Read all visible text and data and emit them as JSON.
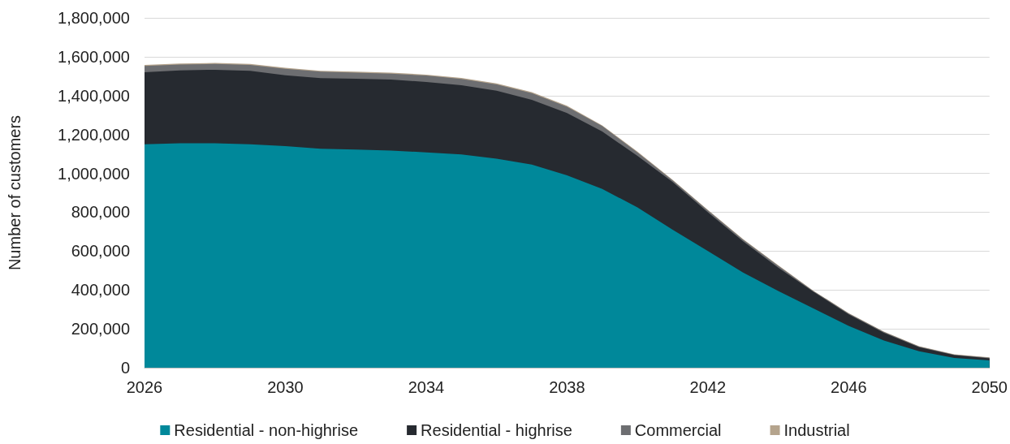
{
  "chart_data": {
    "type": "area",
    "stacked": true,
    "ylabel": "Number of customers",
    "x": [
      2026,
      2027,
      2028,
      2029,
      2030,
      2031,
      2032,
      2033,
      2034,
      2035,
      2036,
      2037,
      2038,
      2039,
      2040,
      2041,
      2042,
      2043,
      2044,
      2045,
      2046,
      2047,
      2048,
      2049,
      2050
    ],
    "series": [
      {
        "name": "Residential - non-highrise",
        "color": "#00889a",
        "values": [
          1150000,
          1155000,
          1155000,
          1150000,
          1140000,
          1127000,
          1122000,
          1117000,
          1108000,
          1097000,
          1075000,
          1045000,
          990000,
          920000,
          825000,
          710000,
          600000,
          490000,
          395000,
          305000,
          215000,
          140000,
          85000,
          50000,
          38000
        ]
      },
      {
        "name": "Residential - highrise",
        "color": "#262a30",
        "values": [
          370000,
          375000,
          378000,
          377000,
          365000,
          363000,
          365000,
          366000,
          362000,
          356000,
          350000,
          333000,
          320000,
          295000,
          265000,
          245000,
          200000,
          160000,
          120000,
          85000,
          60000,
          40000,
          20000,
          15000,
          10000
        ]
      },
      {
        "name": "Commercial",
        "color": "#6d6e71",
        "values": [
          33000,
          30000,
          30000,
          31000,
          33000,
          33000,
          31000,
          30000,
          33000,
          33000,
          33000,
          35000,
          33000,
          28000,
          18000,
          9000,
          9000,
          9000,
          9000,
          4000,
          4000,
          4000,
          4000,
          2000,
          3000
        ]
      },
      {
        "name": "Industrial",
        "color": "#b5a48d",
        "values": [
          5000,
          5000,
          5000,
          5000,
          5000,
          5000,
          5000,
          5000,
          5000,
          5000,
          5000,
          5000,
          5000,
          4000,
          4000,
          3000,
          3000,
          3000,
          3000,
          2000,
          2000,
          2000,
          2000,
          2000,
          2000
        ]
      }
    ],
    "xlim": [
      2026,
      2050
    ],
    "xticks": [
      2026,
      2030,
      2034,
      2038,
      2042,
      2046,
      2050
    ],
    "ylim": [
      0,
      1800000
    ],
    "yticks": [
      0,
      {
        "value": 200000,
        "label": "200,000"
      },
      {
        "value": 400000,
        "label": "400,000"
      },
      {
        "value": 600000,
        "label": "600,000"
      },
      {
        "value": 800000,
        "label": "800,000"
      },
      {
        "value": 1000000,
        "label": "1,000,000"
      },
      {
        "value": 1200000,
        "label": "1,200,000"
      },
      {
        "value": 1400000,
        "label": "1,400,000"
      },
      {
        "value": 1600000,
        "label": "1,600,000"
      },
      {
        "value": 1800000,
        "label": "1,800,000"
      }
    ],
    "grid": "y",
    "legend": "bottom"
  }
}
